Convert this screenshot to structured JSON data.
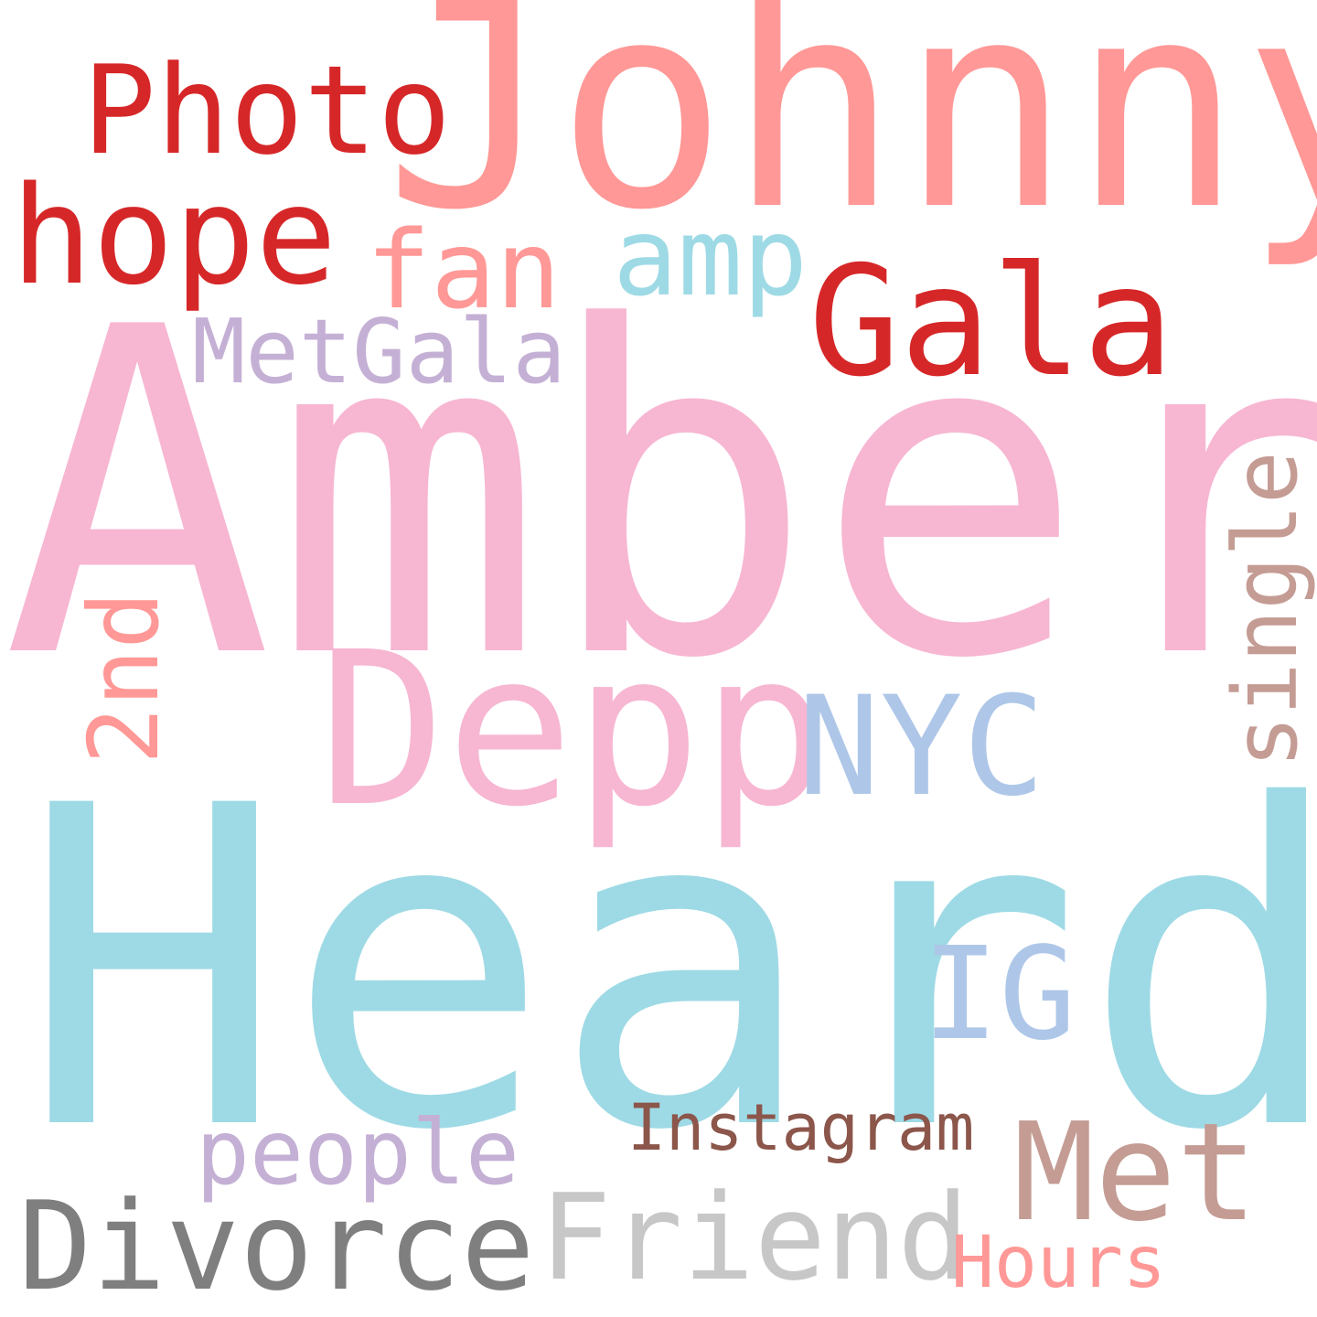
{
  "words": [
    {
      "id": "amber",
      "text": "Amber",
      "color": "#f7b6d2"
    },
    {
      "id": "heard",
      "text": "Heard",
      "color": "#9edae5"
    },
    {
      "id": "johnny",
      "text": "Johnny",
      "color": "#ff9896"
    },
    {
      "id": "depp",
      "text": "Depp",
      "color": "#f7b6d2"
    },
    {
      "id": "gala",
      "text": "Gala",
      "color": "#d62728"
    },
    {
      "id": "photo",
      "text": "Photo",
      "color": "#d62728"
    },
    {
      "id": "hope",
      "text": "hope",
      "color": "#d62728"
    },
    {
      "id": "fan",
      "text": "fan",
      "color": "#ff9896"
    },
    {
      "id": "amp",
      "text": "amp",
      "color": "#9edae5"
    },
    {
      "id": "metgala",
      "text": "MetGala",
      "color": "#c5b0d5"
    },
    {
      "id": "nyc",
      "text": "NYC",
      "color": "#aec7e8"
    },
    {
      "id": "single",
      "text": "single",
      "color": "#c49c94"
    },
    {
      "id": "2nd",
      "text": "2nd",
      "color": "#ff9896"
    },
    {
      "id": "ig",
      "text": "IG",
      "color": "#aec7e8"
    },
    {
      "id": "people",
      "text": "people",
      "color": "#c5b0d5"
    },
    {
      "id": "instagram",
      "text": "Instagram",
      "color": "#8c564b"
    },
    {
      "id": "met",
      "text": "Met",
      "color": "#c49c94"
    },
    {
      "id": "divorce",
      "text": "Divorce",
      "color": "#7f7f7f"
    },
    {
      "id": "friend",
      "text": "Friend",
      "color": "#c7c7c7"
    },
    {
      "id": "hours",
      "text": "Hours",
      "color": "#ff9896"
    }
  ]
}
